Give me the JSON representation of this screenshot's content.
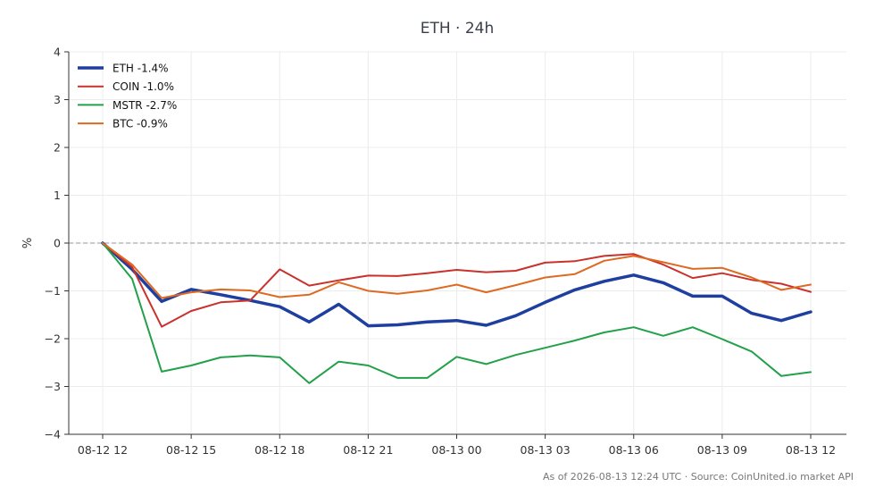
{
  "chart_data": {
    "type": "line",
    "title": "ETH · 24h",
    "xlabel": "",
    "ylabel": "%",
    "ylim": [
      -4,
      4
    ],
    "yticks": [
      4,
      3,
      2,
      1,
      0,
      -1,
      -2,
      -3,
      -4
    ],
    "ytick_labels": [
      "4",
      "3",
      "2",
      "1",
      "0",
      "−1",
      "−2",
      "−3",
      "−4"
    ],
    "x": [
      "08-12 12:00",
      "08-12 13:00",
      "08-12 14:00",
      "08-12 15:00",
      "08-12 16:00",
      "08-12 17:00",
      "08-12 18:00",
      "08-12 19:00",
      "08-12 20:00",
      "08-12 21:00",
      "08-12 22:00",
      "08-12 23:00",
      "08-13 00:00",
      "08-13 01:00",
      "08-13 02:00",
      "08-13 03:00",
      "08-13 04:00",
      "08-13 05:00",
      "08-13 06:00",
      "08-13 07:00",
      "08-13 08:00",
      "08-13 09:00",
      "08-13 10:00",
      "08-13 11:00",
      "08-13 12:00"
    ],
    "xticks": [
      "08-12 12",
      "08-12 15",
      "08-12 18",
      "08-12 21",
      "08-13 00",
      "08-13 03",
      "08-13 06",
      "08-13 09",
      "08-13 12"
    ],
    "xtick_index": [
      0,
      3,
      6,
      9,
      12,
      15,
      18,
      21,
      24
    ],
    "grid": true,
    "zero_line": true,
    "legend_position": "top-left",
    "series": [
      {
        "name": "ETH -1.4%",
        "color": "#1f3fa0",
        "width": 3.5,
        "values": [
          0.0,
          -0.55,
          -1.22,
          -0.97,
          -1.08,
          -1.2,
          -1.33,
          -1.65,
          -1.28,
          -1.73,
          -1.71,
          -1.65,
          -1.62,
          -1.72,
          -1.52,
          -1.24,
          -0.98,
          -0.8,
          -0.67,
          -0.83,
          -1.11,
          -1.11,
          -1.47,
          -1.62,
          -1.44
        ]
      },
      {
        "name": "COIN -1.0%",
        "color": "#c9312c",
        "width": 2,
        "values": [
          0.0,
          -0.5,
          -1.75,
          -1.42,
          -1.24,
          -1.2,
          -0.55,
          -0.89,
          -0.78,
          -0.68,
          -0.69,
          -0.63,
          -0.56,
          -0.61,
          -0.58,
          -0.41,
          -0.38,
          -0.27,
          -0.23,
          -0.45,
          -0.73,
          -0.63,
          -0.77,
          -0.85,
          -1.02
        ]
      },
      {
        "name": "MSTR -2.7%",
        "color": "#22a04a",
        "width": 2,
        "values": [
          0.0,
          -0.75,
          -2.69,
          -2.56,
          -2.39,
          -2.35,
          -2.39,
          -2.93,
          -2.48,
          -2.56,
          -2.82,
          -2.82,
          -2.38,
          -2.53,
          -2.34,
          -2.19,
          -2.04,
          -1.87,
          -1.76,
          -1.94,
          -1.76,
          -2.01,
          -2.27,
          -2.78,
          -2.7
        ]
      },
      {
        "name": "BTC -0.9%",
        "color": "#de6a22",
        "width": 2,
        "values": [
          0.0,
          -0.45,
          -1.15,
          -1.03,
          -0.97,
          -0.99,
          -1.13,
          -1.08,
          -0.82,
          -1.0,
          -1.06,
          -0.99,
          -0.87,
          -1.03,
          -0.88,
          -0.72,
          -0.65,
          -0.37,
          -0.27,
          -0.4,
          -0.54,
          -0.52,
          -0.72,
          -0.98,
          -0.87
        ]
      }
    ]
  },
  "footer": {
    "source_text": "As of 2026-08-13 12:24 UTC · Source: CoinUnited.io market API"
  }
}
